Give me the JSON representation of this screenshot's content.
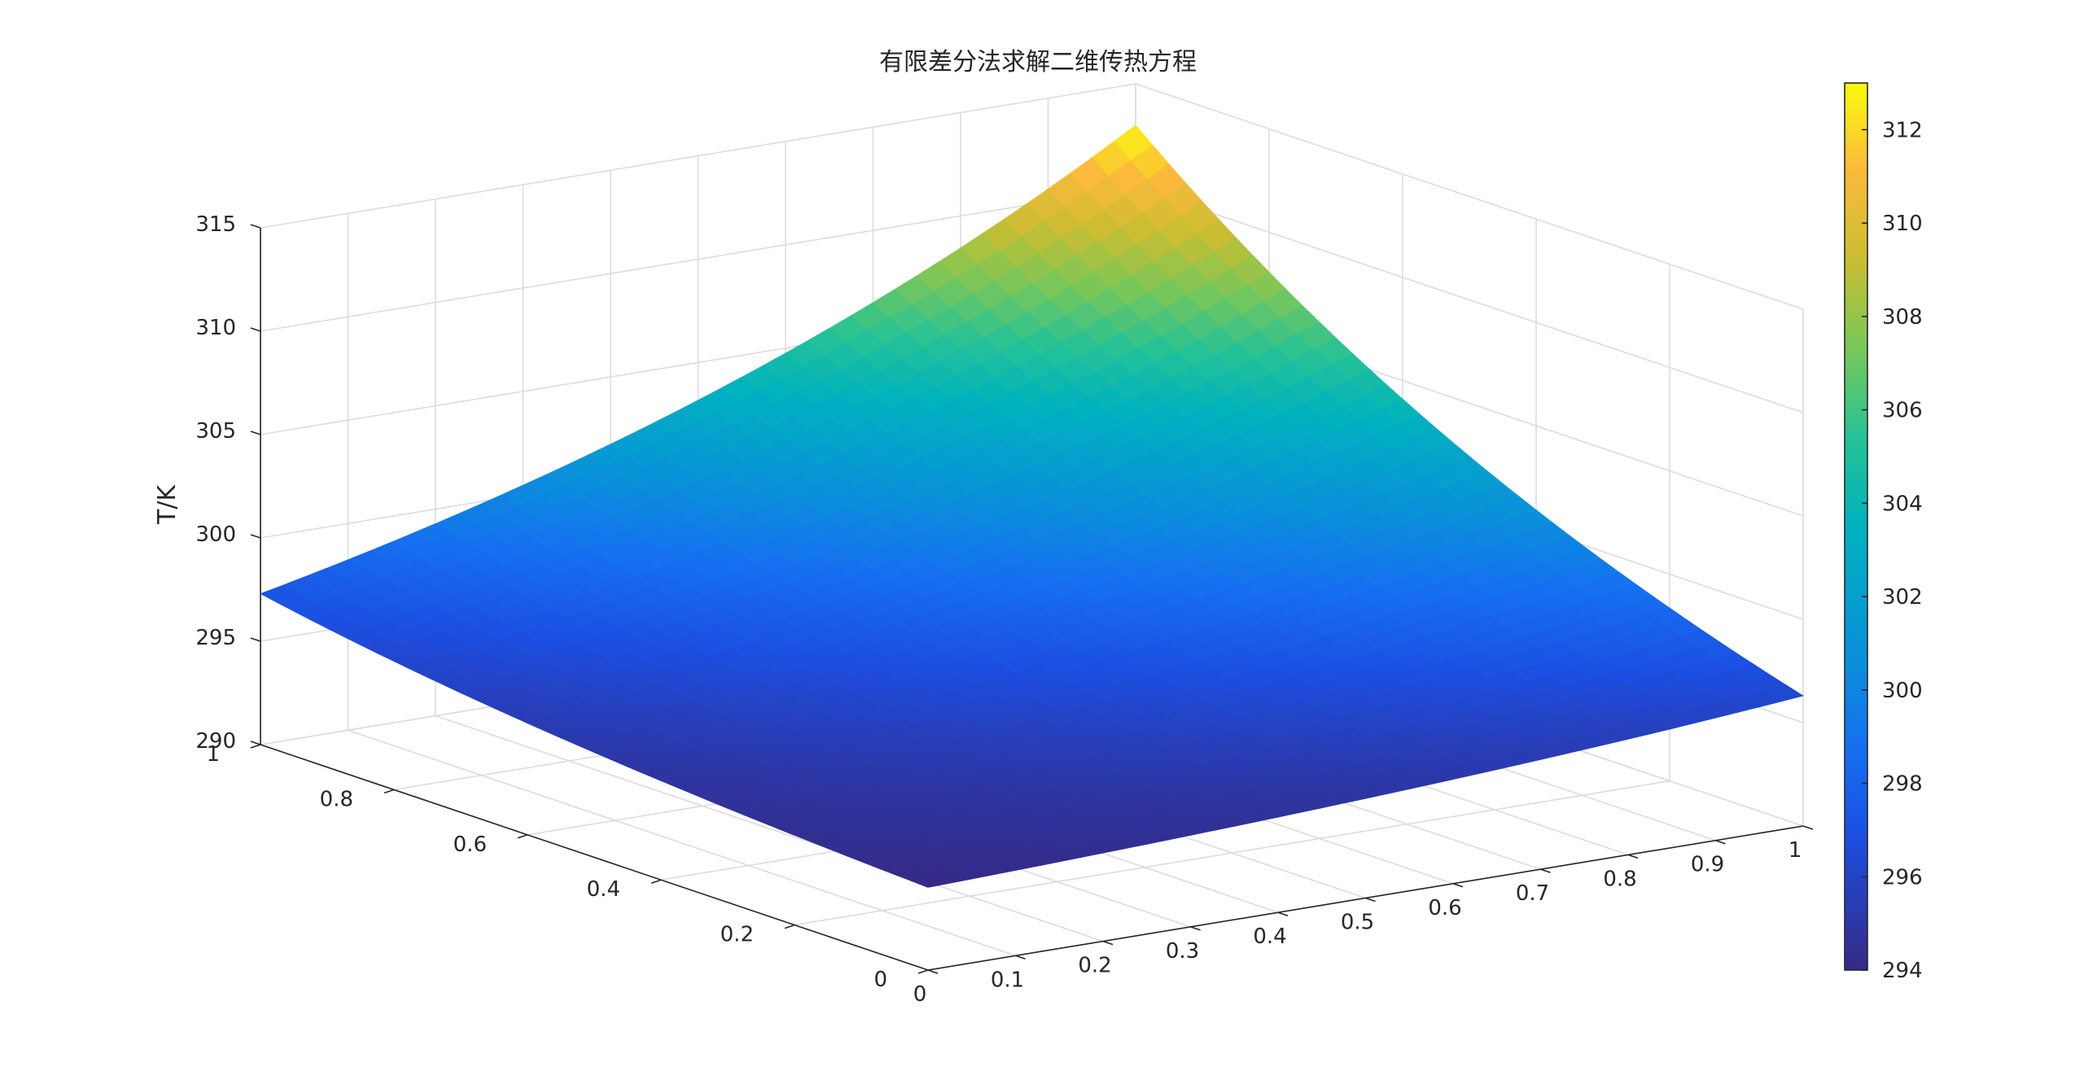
{
  "chart_data": {
    "type": "surface",
    "title": "有限差分法求解二维传热方程",
    "xlabel": "",
    "ylabel": "",
    "zlabel": "T/K",
    "xlim": [
      0,
      1
    ],
    "ylim": [
      0,
      1
    ],
    "zlim": [
      290,
      315
    ],
    "x_ticks": [
      "0",
      "0.1",
      "0.2",
      "0.3",
      "0.4",
      "0.5",
      "0.6",
      "0.7",
      "0.8",
      "0.9",
      "1"
    ],
    "y_ticks": [
      "0",
      "0.2",
      "0.4",
      "0.6",
      "0.8",
      "1"
    ],
    "z_ticks": [
      "290",
      "295",
      "300",
      "305",
      "310",
      "315"
    ],
    "corner_values": {
      "x0_y0": 294.0,
      "x1_y0": 296.3,
      "x0_y1": 297.3,
      "x1_y1": 313.0
    },
    "colorbar": {
      "colormap": "parula",
      "range": [
        294,
        313
      ],
      "ticks": [
        "294",
        "296",
        "298",
        "300",
        "302",
        "304",
        "306",
        "308",
        "310",
        "312"
      ]
    },
    "grid": true
  }
}
